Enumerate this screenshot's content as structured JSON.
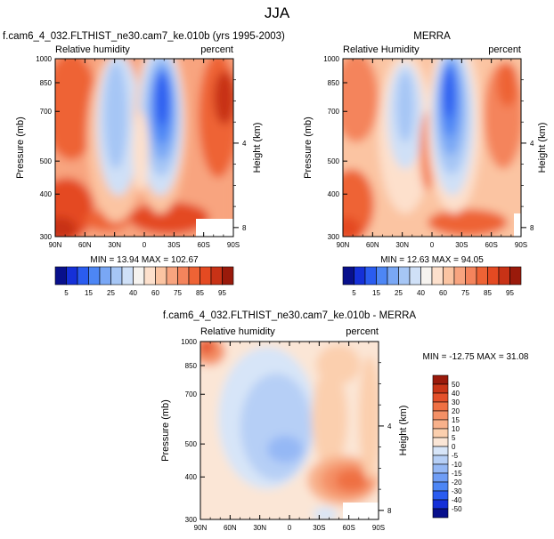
{
  "main_title": "JJA",
  "colors": {
    "abs_scale": [
      "#08108c",
      "#1530d8",
      "#2a5cf0",
      "#4d86f5",
      "#79a7f5",
      "#a6c6f5",
      "#cfe0f7",
      "#f6f3ef",
      "#fde0cc",
      "#fbc4a2",
      "#f8a47f",
      "#f4845c",
      "#ee6335",
      "#e44a22",
      "#c83216",
      "#9a1a0b"
    ],
    "diff_scale": [
      "#08108c",
      "#1530d8",
      "#2a5cf0",
      "#4d86f5",
      "#6f9df5",
      "#95b8f5",
      "#b6cff6",
      "#d7e5f8",
      "#fbe6d6",
      "#fbcfae",
      "#f8b18b",
      "#f49066",
      "#ef7043",
      "#e4502a",
      "#c93517",
      "#9a1a0b"
    ]
  },
  "chart_data": [
    {
      "type": "contour",
      "name": "model",
      "title": "f.cam6_4_032.FLTHIST_ne30.cam7_ke.010b (yrs 1995-2003)",
      "left_label": "Relative humidity",
      "right_label": "percent",
      "xlabel": "",
      "ylabel": "Pressure (mb)",
      "y2label": "Height (km)",
      "x_ticks": [
        "90N",
        "60N",
        "30N",
        "0",
        "30S",
        "60S",
        "90S"
      ],
      "x_range": [
        90,
        -90
      ],
      "y_ticks": [
        300,
        400,
        500,
        700,
        850,
        1000
      ],
      "y_range": [
        1000,
        300
      ],
      "y2_ticks": [
        "8",
        "4"
      ],
      "stats": "MIN =  13.94   MAX = 102.67"
    },
    {
      "type": "contour",
      "name": "obs",
      "title": "MERRA",
      "left_label": "Relative Humidity",
      "right_label": "percent",
      "xlabel": "",
      "ylabel": "Pressure (mb)",
      "y2label": "Height (km)",
      "x_ticks": [
        "90N",
        "60N",
        "30N",
        "0",
        "30S",
        "60S",
        "90S"
      ],
      "x_range": [
        90,
        -90
      ],
      "y_ticks": [
        300,
        400,
        500,
        700,
        850,
        1000
      ],
      "y_range": [
        1000,
        300
      ],
      "y2_ticks": [
        "8",
        "4"
      ],
      "stats": "MIN =  12.63   MAX =  94.05"
    },
    {
      "type": "colorbar",
      "name": "abs-colorbar",
      "orientation": "horizontal",
      "labels": [
        "5",
        "15",
        "25",
        "40",
        "60",
        "75",
        "85",
        "95"
      ]
    },
    {
      "type": "contour",
      "name": "diff",
      "title": "f.cam6_4_032.FLTHIST_ne30.cam7_ke.010b - MERRA",
      "left_label": "Relative humidity",
      "right_label": "percent",
      "xlabel": "",
      "ylabel": "Pressure (mb)",
      "y2label": "Height (km)",
      "x_ticks": [
        "90N",
        "60N",
        "30N",
        "0",
        "30S",
        "60S",
        "90S"
      ],
      "x_range": [
        90,
        -90
      ],
      "y_ticks": [
        300,
        400,
        500,
        700,
        850,
        1000
      ],
      "y_range": [
        1000,
        300
      ],
      "y2_ticks": [
        "8",
        "4"
      ],
      "stats": "MIN = -12.75   MAX =  31.08"
    },
    {
      "type": "colorbar",
      "name": "diff-colorbar",
      "orientation": "vertical",
      "labels": [
        "50",
        "40",
        "30",
        "20",
        "15",
        "10",
        "5",
        "0",
        "-5",
        "-10",
        "-15",
        "-20",
        "-30",
        "-40",
        "-50"
      ]
    }
  ]
}
